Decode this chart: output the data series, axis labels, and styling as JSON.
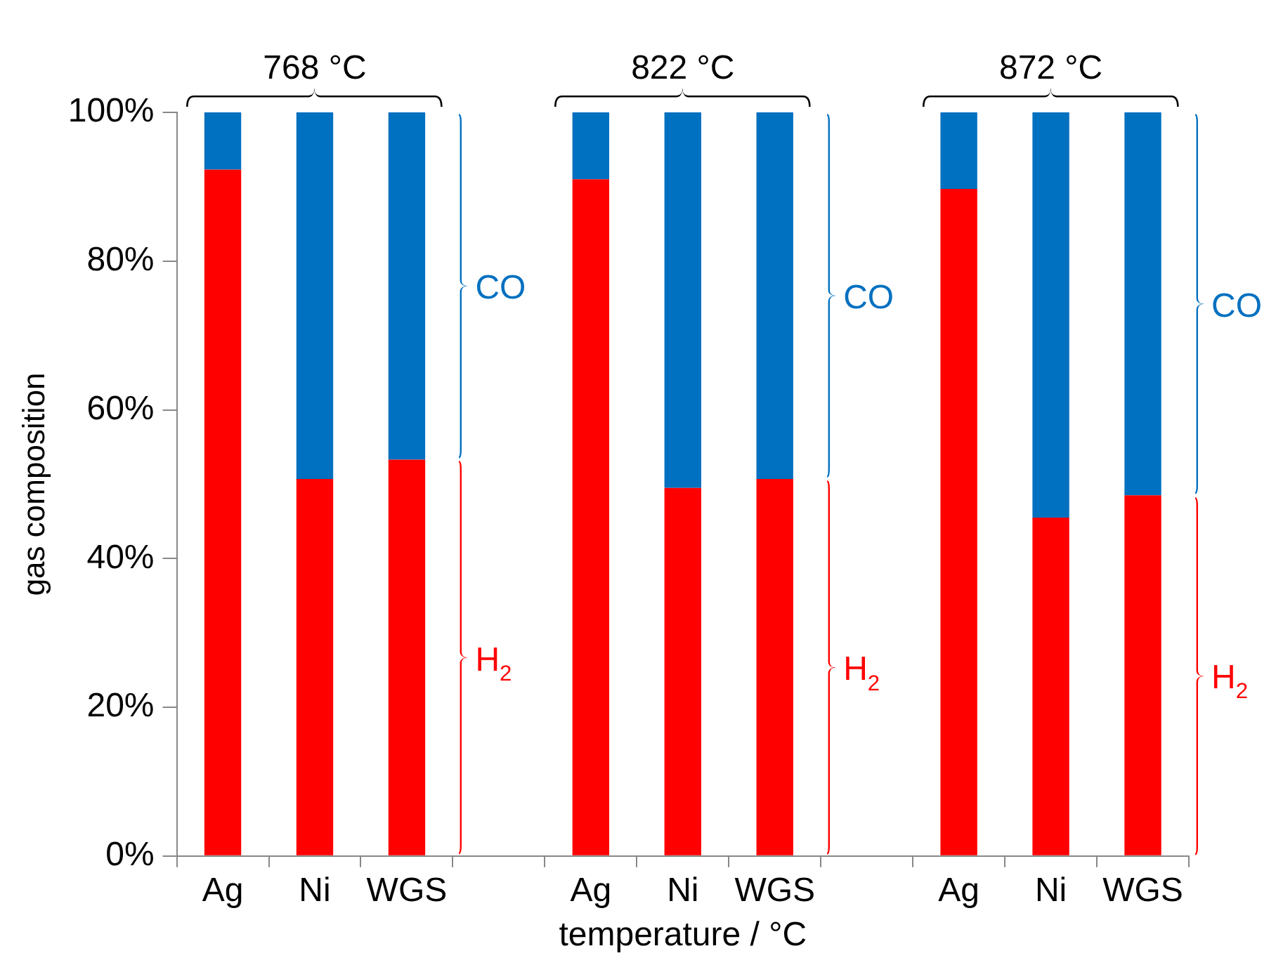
{
  "chart_data": {
    "type": "bar",
    "stacked": true,
    "xlabel": "temperature / °C",
    "ylabel": "gas composition",
    "categories": [
      "Ag",
      "Ni",
      "WGS",
      null,
      "Ag",
      "Ni",
      "WGS",
      null,
      "Ag",
      "Ni",
      "WGS"
    ],
    "series": [
      {
        "name": "H$_{2}$",
        "color": "#ff0000",
        "values": [
          92.3,
          50.7,
          53.3,
          null,
          91.0,
          49.5,
          50.7,
          null,
          89.7,
          45.5,
          48.5
        ]
      },
      {
        "name": "CO",
        "color": "#0070c0",
        "values": [
          7.7,
          49.3,
          46.7,
          null,
          9.0,
          50.5,
          49.3,
          null,
          10.3,
          54.5,
          51.5
        ]
      }
    ],
    "ylim": [
      0,
      100
    ],
    "yticks": [
      {
        "value": 0,
        "label": "0%"
      },
      {
        "value": 20,
        "label": "20%"
      },
      {
        "value": 40,
        "label": "40%"
      },
      {
        "value": 60,
        "label": "60%"
      },
      {
        "value": 80,
        "label": "80%"
      },
      {
        "value": 100,
        "label": "100%"
      }
    ],
    "annotations": [
      "768 °C",
      "822 °C",
      "872 °C"
    ]
  }
}
